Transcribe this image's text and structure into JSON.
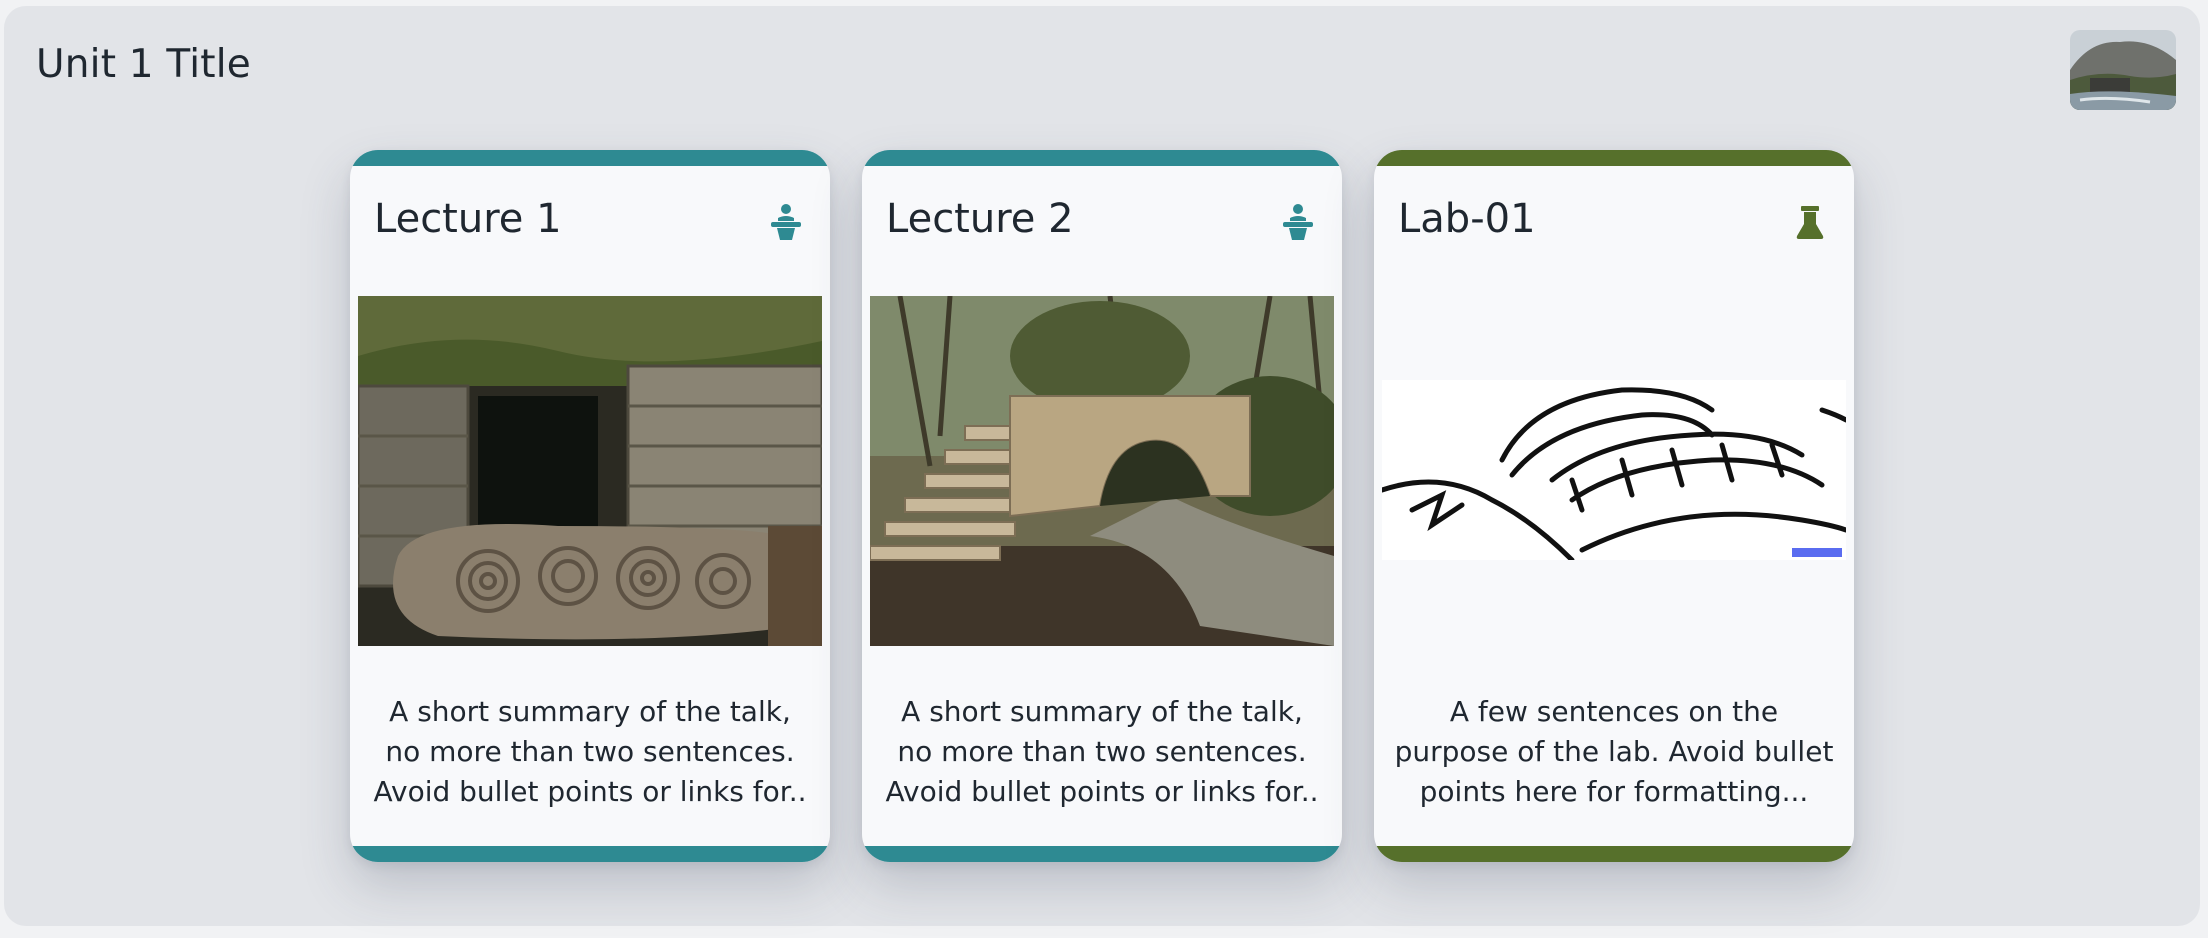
{
  "unit": {
    "title": "Unit 1 Title",
    "thumbnail_icon": "unit-landscape-thumbnail"
  },
  "cards": [
    {
      "title": "Lecture 1",
      "type": "lecture",
      "icon": "lecture-podium-icon",
      "accent": "#2e8a92",
      "image": "carved-spiral-stone-photo",
      "description": "A short summary of the talk, no more than two sentences. Avoid bullet points or links for.."
    },
    {
      "title": "Lecture 2",
      "type": "lecture",
      "icon": "lecture-podium-icon",
      "accent": "#2e8a92",
      "image": "stone-arch-bridge-photo",
      "description": "A short summary of the talk, no more than two sentences. Avoid bullet points or links for.."
    },
    {
      "title": "Lab-01",
      "type": "lab",
      "icon": "lab-flask-icon",
      "accent": "#56702b",
      "image": "bridge-line-drawing",
      "description": "A few sentences on the purpose of the lab. Avoid bullet points here for formatting..."
    }
  ]
}
